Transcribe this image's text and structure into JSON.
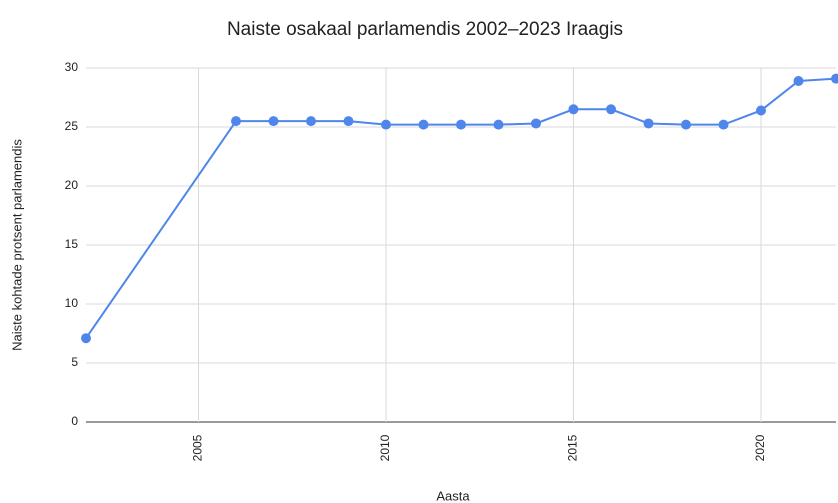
{
  "chart_data": {
    "type": "line",
    "title": "Naiste osakaal parlamendis 2002–2023 Iraagis",
    "x_label": "Aasta",
    "y_label": "Naiste kohtade protsent parlamendis",
    "x": [
      2002,
      2006,
      2007,
      2008,
      2009,
      2010,
      2011,
      2012,
      2013,
      2014,
      2015,
      2016,
      2017,
      2018,
      2019,
      2020,
      2021,
      2022
    ],
    "values": [
      7.1,
      25.5,
      25.5,
      25.5,
      25.5,
      25.2,
      25.2,
      25.2,
      25.2,
      25.3,
      26.5,
      26.5,
      25.3,
      25.2,
      25.2,
      26.4,
      28.9,
      29.1
    ],
    "color": "#4f86ec",
    "xlim": [
      2002,
      2022
    ],
    "xticks": [
      2005,
      2010,
      2015,
      2020
    ],
    "ylim": [
      0,
      30
    ],
    "yticks": [
      0,
      5,
      10,
      15,
      20,
      25,
      30
    ],
    "grid": true
  }
}
